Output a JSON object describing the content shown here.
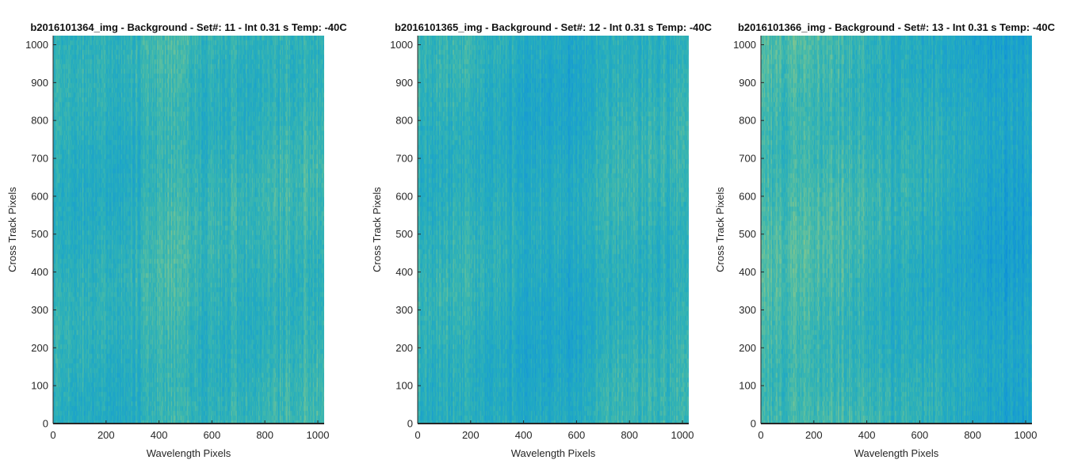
{
  "figure": {
    "background": "#ffffff"
  },
  "colormap": {
    "name": "parula-mid",
    "stops": [
      "#0b8fd8",
      "#1a9fd0",
      "#22abc1",
      "#3db7ae",
      "#6fc398",
      "#a8c97a"
    ]
  },
  "chart_data": [
    {
      "type": "heatmap",
      "title": "b2016101364_img - Background - Set#: 11 - Int 0.31 s Temp: -40C",
      "xlabel": "Wavelength Pixels",
      "ylabel": "Cross Track Pixels",
      "xlim": [
        0,
        1024
      ],
      "ylim": [
        0,
        1024
      ],
      "xticks": [
        0,
        200,
        400,
        600,
        800,
        1000
      ],
      "yticks": [
        0,
        100,
        200,
        300,
        400,
        500,
        600,
        700,
        800,
        900,
        1000
      ],
      "column_profile": [
        {
          "x": 0,
          "v": 0.5
        },
        {
          "x": 80,
          "v": 0.44
        },
        {
          "x": 160,
          "v": 0.47
        },
        {
          "x": 240,
          "v": 0.42
        },
        {
          "x": 320,
          "v": 0.47
        },
        {
          "x": 400,
          "v": 0.55
        },
        {
          "x": 440,
          "v": 0.62
        },
        {
          "x": 500,
          "v": 0.56
        },
        {
          "x": 560,
          "v": 0.48
        },
        {
          "x": 640,
          "v": 0.5
        },
        {
          "x": 720,
          "v": 0.47
        },
        {
          "x": 800,
          "v": 0.51
        },
        {
          "x": 880,
          "v": 0.54
        },
        {
          "x": 960,
          "v": 0.56
        },
        {
          "x": 1024,
          "v": 0.52
        }
      ]
    },
    {
      "type": "heatmap",
      "title": "b2016101365_img - Background - Set#: 12 - Int 0.31 s Temp: -40C",
      "xlabel": "Wavelength Pixels",
      "ylabel": "Cross Track Pixels",
      "xlim": [
        0,
        1024
      ],
      "ylim": [
        0,
        1024
      ],
      "xticks": [
        0,
        200,
        400,
        600,
        800,
        1000
      ],
      "yticks": [
        0,
        100,
        200,
        300,
        400,
        500,
        600,
        700,
        800,
        900,
        1000
      ],
      "column_profile": [
        {
          "x": 0,
          "v": 0.48
        },
        {
          "x": 80,
          "v": 0.46
        },
        {
          "x": 160,
          "v": 0.5
        },
        {
          "x": 240,
          "v": 0.46
        },
        {
          "x": 320,
          "v": 0.44
        },
        {
          "x": 400,
          "v": 0.4
        },
        {
          "x": 480,
          "v": 0.38
        },
        {
          "x": 560,
          "v": 0.37
        },
        {
          "x": 640,
          "v": 0.42
        },
        {
          "x": 720,
          "v": 0.48
        },
        {
          "x": 800,
          "v": 0.52
        },
        {
          "x": 880,
          "v": 0.5
        },
        {
          "x": 960,
          "v": 0.48
        },
        {
          "x": 1024,
          "v": 0.5
        }
      ]
    },
    {
      "type": "heatmap",
      "title": "b2016101366_img - Background - Set#: 13 - Int 0.31 s Temp: -40C",
      "xlabel": "Wavelength Pixels",
      "ylabel": "Cross Track Pixels",
      "xlim": [
        0,
        1024
      ],
      "ylim": [
        0,
        1024
      ],
      "xticks": [
        0,
        200,
        400,
        600,
        800,
        1000
      ],
      "yticks": [
        0,
        100,
        200,
        300,
        400,
        500,
        600,
        700,
        800,
        900,
        1000
      ],
      "column_profile": [
        {
          "x": 0,
          "v": 0.62
        },
        {
          "x": 80,
          "v": 0.6
        },
        {
          "x": 160,
          "v": 0.64
        },
        {
          "x": 240,
          "v": 0.58
        },
        {
          "x": 320,
          "v": 0.57
        },
        {
          "x": 400,
          "v": 0.52
        },
        {
          "x": 480,
          "v": 0.48
        },
        {
          "x": 560,
          "v": 0.44
        },
        {
          "x": 640,
          "v": 0.42
        },
        {
          "x": 720,
          "v": 0.4
        },
        {
          "x": 800,
          "v": 0.33
        },
        {
          "x": 880,
          "v": 0.28
        },
        {
          "x": 960,
          "v": 0.27
        },
        {
          "x": 1024,
          "v": 0.3
        }
      ]
    }
  ]
}
